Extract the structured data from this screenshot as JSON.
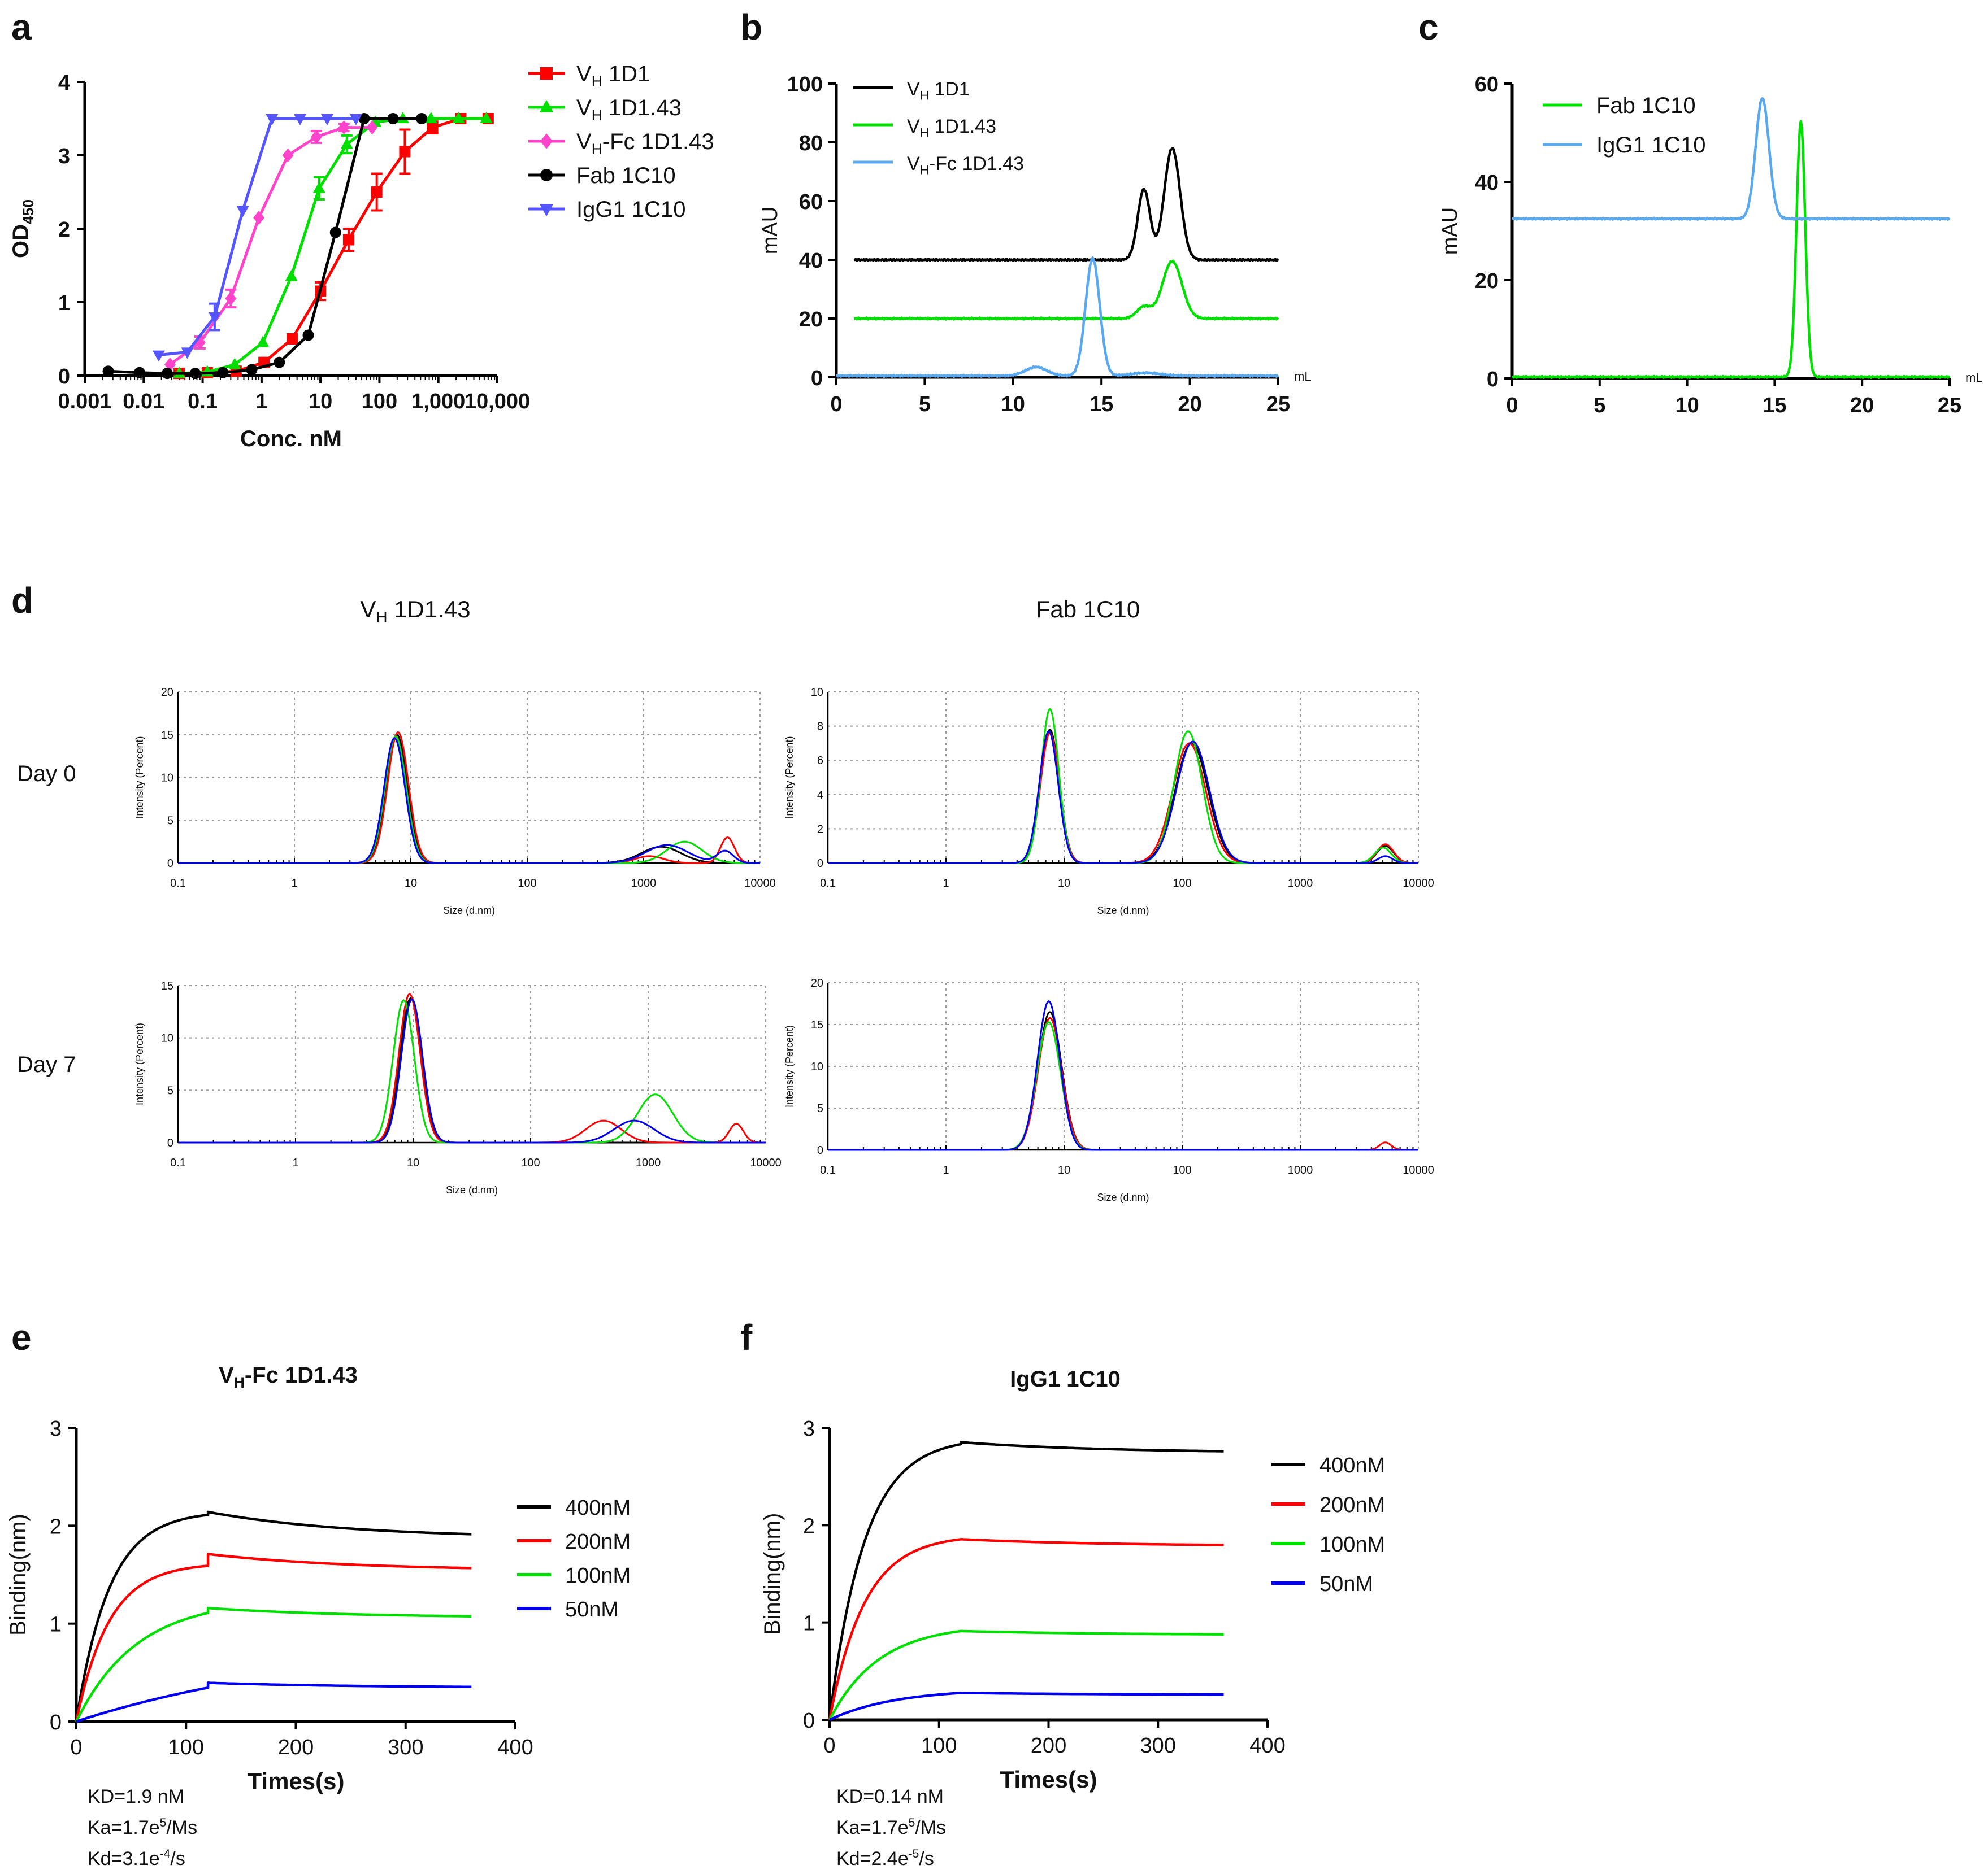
{
  "figure": {
    "panel_labels": [
      "a",
      "b",
      "c",
      "d",
      "e",
      "f"
    ],
    "colors": {
      "black": "#000000",
      "red": "#ff0000",
      "green": "#00e000",
      "pink": "#ff44cc",
      "blue": "#5555ff",
      "lightblue": "#5aa8ee",
      "navy": "#0000ee"
    }
  },
  "chart_data": [
    {
      "id": "a",
      "type": "line",
      "xscale": "log",
      "xlabel": "Conc. nM",
      "ylabel": "OD450",
      "ylabel_main": "OD",
      "ylabel_sub": "450",
      "xlim": [
        0.001,
        10000
      ],
      "ylim": [
        0,
        4
      ],
      "xtick_labels": [
        "0.001",
        "0.01",
        "0.1",
        "1",
        "10",
        "100",
        "1,000",
        "10,000"
      ],
      "ytick_labels": [
        "0",
        "1",
        "2",
        "3",
        "4"
      ],
      "legend": "top-right",
      "series": [
        {
          "name": "VH 1D1",
          "label_main": "V",
          "label_sub": "H",
          "label_rest": " 1D1",
          "color": "#ff0000",
          "marker": "square",
          "x": [
            0.04,
            0.12,
            0.37,
            1.1,
            3.3,
            10,
            30,
            90,
            270,
            800,
            2400,
            7000
          ],
          "y": [
            0.03,
            0.04,
            0.06,
            0.18,
            0.5,
            1.15,
            1.85,
            2.5,
            3.05,
            3.38,
            3.5,
            3.5
          ],
          "err": [
            0,
            0,
            0,
            0,
            0,
            0.12,
            0.15,
            0.25,
            0.3,
            0.08,
            0,
            0
          ]
        },
        {
          "name": "VH 1D1.43",
          "label_main": "V",
          "label_sub": "H",
          "label_rest": " 1D1.43",
          "color": "#00e000",
          "marker": "triangle-up",
          "x": [
            0.04,
            0.12,
            0.35,
            1.05,
            3.2,
            9.5,
            28,
            85,
            250,
            750,
            2200,
            6500
          ],
          "y": [
            0.03,
            0.05,
            0.15,
            0.45,
            1.35,
            2.55,
            3.15,
            3.45,
            3.5,
            3.5,
            3.5,
            3.5
          ],
          "err": [
            0,
            0,
            0,
            0,
            0,
            0.15,
            0.12,
            0,
            0,
            0,
            0,
            0
          ]
        },
        {
          "name": "VH-Fc 1D1.43",
          "label_main": "V",
          "label_sub": "H",
          "label_rest": "-Fc 1D1.43",
          "color": "#ff44cc",
          "marker": "diamond",
          "x": [
            0.028,
            0.09,
            0.3,
            0.9,
            2.8,
            8.5,
            25,
            75
          ],
          "y": [
            0.15,
            0.45,
            1.05,
            2.15,
            3.0,
            3.25,
            3.38,
            3.38
          ],
          "err": [
            0,
            0.08,
            0.12,
            0,
            0,
            0.08,
            0.05,
            0
          ]
        },
        {
          "name": "Fab 1C10",
          "label_main": "Fab 1C10",
          "label_sub": "",
          "label_rest": "",
          "color": "#000000",
          "marker": "circle",
          "x": [
            0.0025,
            0.0085,
            0.025,
            0.075,
            0.22,
            0.68,
            2.0,
            6.2,
            18,
            55,
            170,
            520
          ],
          "y": [
            0.06,
            0.04,
            0.03,
            0.03,
            0.04,
            0.08,
            0.18,
            0.55,
            1.95,
            3.5,
            3.5,
            3.5
          ],
          "err": [
            0,
            0,
            0,
            0,
            0,
            0,
            0,
            0,
            0,
            0,
            0,
            0
          ]
        },
        {
          "name": "IgG1 1C10",
          "label_main": "IgG1 1C10",
          "label_sub": "",
          "label_rest": "",
          "color": "#5555ff",
          "marker": "triangle-down",
          "x": [
            0.018,
            0.055,
            0.16,
            0.48,
            1.5,
            4.5,
            13,
            40
          ],
          "y": [
            0.28,
            0.32,
            0.8,
            2.25,
            3.5,
            3.5,
            3.5,
            3.5
          ],
          "err": [
            0,
            0,
            0.18,
            0,
            0,
            0,
            0,
            0
          ]
        }
      ]
    },
    {
      "id": "b",
      "type": "line",
      "xlabel": "mL",
      "ylabel": "mAU",
      "xlim": [
        0,
        25
      ],
      "ylim": [
        0,
        100
      ],
      "xtick_labels": [
        "0",
        "5",
        "10",
        "15",
        "20",
        "25"
      ],
      "ytick_labels": [
        "0",
        "20",
        "40",
        "60",
        "80",
        "100"
      ],
      "legend": "top-left",
      "series": [
        {
          "name": "VH 1D1",
          "label_main": "V",
          "label_sub": "H",
          "label_rest": " 1D1",
          "color": "#000000",
          "baseline": 40,
          "start": 1,
          "peaks": [
            {
              "c": 17.4,
              "h": 24,
              "w": 0.35
            },
            {
              "c": 19.0,
              "h": 38,
              "w": 0.45
            }
          ]
        },
        {
          "name": "VH 1D1.43",
          "label_main": "V",
          "label_sub": "H",
          "label_rest": " 1D1.43",
          "color": "#00e000",
          "baseline": 20,
          "start": 1,
          "peaks": [
            {
              "c": 17.4,
              "h": 4,
              "w": 0.4
            },
            {
              "c": 19.0,
              "h": 19.5,
              "w": 0.55
            }
          ]
        },
        {
          "name": "VH-Fc 1D1.43",
          "label_main": "V",
          "label_sub": "H",
          "label_rest": "-Fc 1D1.43",
          "color": "#5aa8ee",
          "baseline": 0.5,
          "start": 0,
          "peaks": [
            {
              "c": 11.3,
              "h": 3,
              "w": 0.6
            },
            {
              "c": 14.5,
              "h": 40,
              "w": 0.4
            },
            {
              "c": 17.5,
              "h": 1,
              "w": 0.8
            }
          ]
        }
      ]
    },
    {
      "id": "c",
      "type": "line",
      "xlabel": "mL",
      "ylabel": "mAU",
      "xlim": [
        0,
        25
      ],
      "ylim": [
        0,
        60
      ],
      "xtick_labels": [
        "0",
        "5",
        "10",
        "15",
        "20",
        "25"
      ],
      "ytick_labels": [
        "0",
        "20",
        "40",
        "60"
      ],
      "legend": "top-left",
      "series": [
        {
          "name": "Fab 1C10",
          "label_main": "Fab 1C10",
          "label_sub": "",
          "label_rest": "",
          "color": "#00e000",
          "baseline": 0.3,
          "start": 0,
          "peaks": [
            {
              "c": 16.5,
              "h": 52,
              "w": 0.25
            }
          ]
        },
        {
          "name": "IgG1 1C10",
          "label_main": "IgG1 1C10",
          "label_sub": "",
          "label_rest": "",
          "color": "#5aa8ee",
          "baseline": 32.5,
          "start": 0,
          "peaks": [
            {
              "c": 14.3,
              "h": 24.5,
              "w": 0.38
            }
          ]
        }
      ]
    },
    {
      "id": "d",
      "type": "line",
      "title_left": "VH 1D1.43",
      "title_left_main": "V",
      "title_left_sub": "H",
      "title_left_rest": " 1D1.43",
      "title_right": "Fab 1C10",
      "row_labels": [
        "Day 0",
        "Day 7"
      ],
      "xlabel": "Size (d.nm)",
      "ylabel": "Intensity (Percent)",
      "xscale": "log",
      "xtick_labels": [
        "0.1",
        "1",
        "10",
        "100",
        "1000",
        "10000"
      ],
      "subplots": [
        {
          "row": 0,
          "col": 0,
          "ylim": [
            0,
            20
          ],
          "ytick_labels": [
            "0",
            "5",
            "10",
            "15",
            "20"
          ],
          "curves": [
            {
              "color": "#000000",
              "peaks": [
                {
                  "c": 0.88,
                  "h": 15,
                  "w": 0.09
                },
                {
                  "c": 3.15,
                  "h": 1.9,
                  "w": 0.17
                }
              ]
            },
            {
              "color": "#ff0000",
              "peaks": [
                {
                  "c": 0.89,
                  "h": 15.3,
                  "w": 0.09
                },
                {
                  "c": 3.05,
                  "h": 0.8,
                  "w": 0.12
                },
                {
                  "c": 3.72,
                  "h": 3.0,
                  "w": 0.06
                }
              ]
            },
            {
              "color": "#00e000",
              "peaks": [
                {
                  "c": 0.87,
                  "h": 14.8,
                  "w": 0.09
                },
                {
                  "c": 3.35,
                  "h": 2.5,
                  "w": 0.15
                }
              ]
            },
            {
              "color": "#0000ee",
              "peaks": [
                {
                  "c": 0.86,
                  "h": 14.6,
                  "w": 0.09
                },
                {
                  "c": 3.2,
                  "h": 2.1,
                  "w": 0.18
                },
                {
                  "c": 3.7,
                  "h": 1.4,
                  "w": 0.07
                }
              ]
            }
          ]
        },
        {
          "row": 0,
          "col": 1,
          "ylim": [
            0,
            10
          ],
          "ytick_labels": [
            "0",
            "2",
            "4",
            "6",
            "8",
            "10"
          ],
          "curves": [
            {
              "color": "#000000",
              "peaks": [
                {
                  "c": 0.88,
                  "h": 7.8,
                  "w": 0.08
                },
                {
                  "c": 2.08,
                  "h": 7.0,
                  "w": 0.14
                },
                {
                  "c": 3.72,
                  "h": 1.0,
                  "w": 0.07
                }
              ]
            },
            {
              "color": "#ff0000",
              "peaks": [
                {
                  "c": 0.88,
                  "h": 7.6,
                  "w": 0.08
                },
                {
                  "c": 2.06,
                  "h": 7.0,
                  "w": 0.14
                },
                {
                  "c": 3.72,
                  "h": 1.1,
                  "w": 0.07
                }
              ]
            },
            {
              "color": "#00e000",
              "peaks": [
                {
                  "c": 0.88,
                  "h": 9.0,
                  "w": 0.075
                },
                {
                  "c": 2.05,
                  "h": 7.7,
                  "w": 0.12
                },
                {
                  "c": 3.7,
                  "h": 0.9,
                  "w": 0.07
                }
              ]
            },
            {
              "color": "#0000ee",
              "peaks": [
                {
                  "c": 0.87,
                  "h": 7.7,
                  "w": 0.08
                },
                {
                  "c": 2.09,
                  "h": 7.1,
                  "w": 0.14
                },
                {
                  "c": 3.72,
                  "h": 0.4,
                  "w": 0.06
                }
              ]
            }
          ]
        },
        {
          "row": 1,
          "col": 0,
          "ylim": [
            0,
            15
          ],
          "ytick_labels": [
            "0",
            "5",
            "10",
            "15"
          ],
          "curves": [
            {
              "color": "#000000",
              "peaks": [
                {
                  "c": 0.98,
                  "h": 13.8,
                  "w": 0.09
                }
              ]
            },
            {
              "color": "#ff0000",
              "peaks": [
                {
                  "c": 0.97,
                  "h": 14.2,
                  "w": 0.09
                },
                {
                  "c": 2.62,
                  "h": 2.1,
                  "w": 0.15
                },
                {
                  "c": 3.75,
                  "h": 1.8,
                  "w": 0.06
                }
              ]
            },
            {
              "color": "#00e000",
              "peaks": [
                {
                  "c": 0.92,
                  "h": 13.6,
                  "w": 0.09
                },
                {
                  "c": 3.06,
                  "h": 4.6,
                  "w": 0.15
                }
              ]
            },
            {
              "color": "#0000ee",
              "peaks": [
                {
                  "c": 0.99,
                  "h": 13.7,
                  "w": 0.09
                },
                {
                  "c": 2.88,
                  "h": 2.1,
                  "w": 0.17
                }
              ]
            }
          ]
        },
        {
          "row": 1,
          "col": 1,
          "ylim": [
            0,
            20
          ],
          "ytick_labels": [
            "0",
            "5",
            "10",
            "15",
            "20"
          ],
          "curves": [
            {
              "color": "#000000",
              "peaks": [
                {
                  "c": 0.88,
                  "h": 16.5,
                  "w": 0.1
                }
              ]
            },
            {
              "color": "#ff0000",
              "peaks": [
                {
                  "c": 0.88,
                  "h": 15.8,
                  "w": 0.1
                },
                {
                  "c": 3.72,
                  "h": 0.9,
                  "w": 0.05
                }
              ]
            },
            {
              "color": "#00e000",
              "peaks": [
                {
                  "c": 0.87,
                  "h": 15.3,
                  "w": 0.1
                }
              ]
            },
            {
              "color": "#0000ee",
              "peaks": [
                {
                  "c": 0.87,
                  "h": 17.8,
                  "w": 0.095
                }
              ]
            }
          ]
        }
      ]
    },
    {
      "id": "e",
      "type": "line",
      "title": "VH-Fc 1D1.43",
      "title_main": "V",
      "title_sub": "H",
      "title_rest": "-Fc 1D1.43",
      "xlabel": "Times(s)",
      "ylabel": "Binding(nm)",
      "xlim": [
        0,
        400
      ],
      "ylim": [
        0,
        3
      ],
      "xtick_labels": [
        "0",
        "100",
        "200",
        "300",
        "400"
      ],
      "ytick_labels": [
        "0",
        "1",
        "2",
        "3"
      ],
      "association_end": 120,
      "end": 360,
      "legend": "right",
      "series": [
        {
          "name": "400nM",
          "color": "#000000",
          "Rmax": 2.15,
          "tau": 30,
          "spike": 0.03,
          "drop": 0.27
        },
        {
          "name": "200nM",
          "color": "#ff0000",
          "Rmax": 1.62,
          "tau": 30,
          "spike": 0.12,
          "drop": 0.17
        },
        {
          "name": "100nM",
          "color": "#00e000",
          "Rmax": 1.25,
          "tau": 55,
          "spike": 0.05,
          "drop": 0.1
        },
        {
          "name": "50nM",
          "color": "#0000ee",
          "Rmax": 0.85,
          "tau": 230,
          "spike": 0.05,
          "drop": 0.05
        }
      ],
      "kinetics": [
        {
          "main": "KD=1.9 nM",
          "sup": "",
          "rest": ""
        },
        {
          "main": "Ka=1.7e",
          "sup": "5",
          "rest": "/Ms"
        },
        {
          "main": "Kd=3.1e",
          "sup": "-4",
          "rest": "/s"
        }
      ]
    },
    {
      "id": "f",
      "type": "line",
      "title": "IgG1 1C10",
      "xlabel": "Times(s)",
      "ylabel": "Binding(nm)",
      "xlim": [
        0,
        400
      ],
      "ylim": [
        0,
        3
      ],
      "xtick_labels": [
        "0",
        "100",
        "200",
        "300",
        "400"
      ],
      "ytick_labels": [
        "0",
        "1",
        "2",
        "3"
      ],
      "association_end": 120,
      "end": 360,
      "legend": "right",
      "series": [
        {
          "name": "400nM",
          "color": "#000000",
          "Rmax": 2.9,
          "tau": 32,
          "spike": 0.02,
          "drop": 0.11
        },
        {
          "name": "200nM",
          "color": "#ff0000",
          "Rmax": 1.9,
          "tau": 32,
          "spike": 0.0,
          "drop": 0.07
        },
        {
          "name": "100nM",
          "color": "#00e000",
          "Rmax": 0.98,
          "tau": 45,
          "spike": 0.0,
          "drop": 0.04
        },
        {
          "name": "50nM",
          "color": "#0000ee",
          "Rmax": 0.32,
          "tau": 60,
          "spike": 0.0,
          "drop": 0.02
        }
      ],
      "kinetics": [
        {
          "main": "KD=0.14 nM",
          "sup": "",
          "rest": ""
        },
        {
          "main": "Ka=1.7e",
          "sup": "5",
          "rest": "/Ms"
        },
        {
          "main": "Kd=2.4e",
          "sup": "-5",
          "rest": "/s"
        }
      ]
    }
  ]
}
